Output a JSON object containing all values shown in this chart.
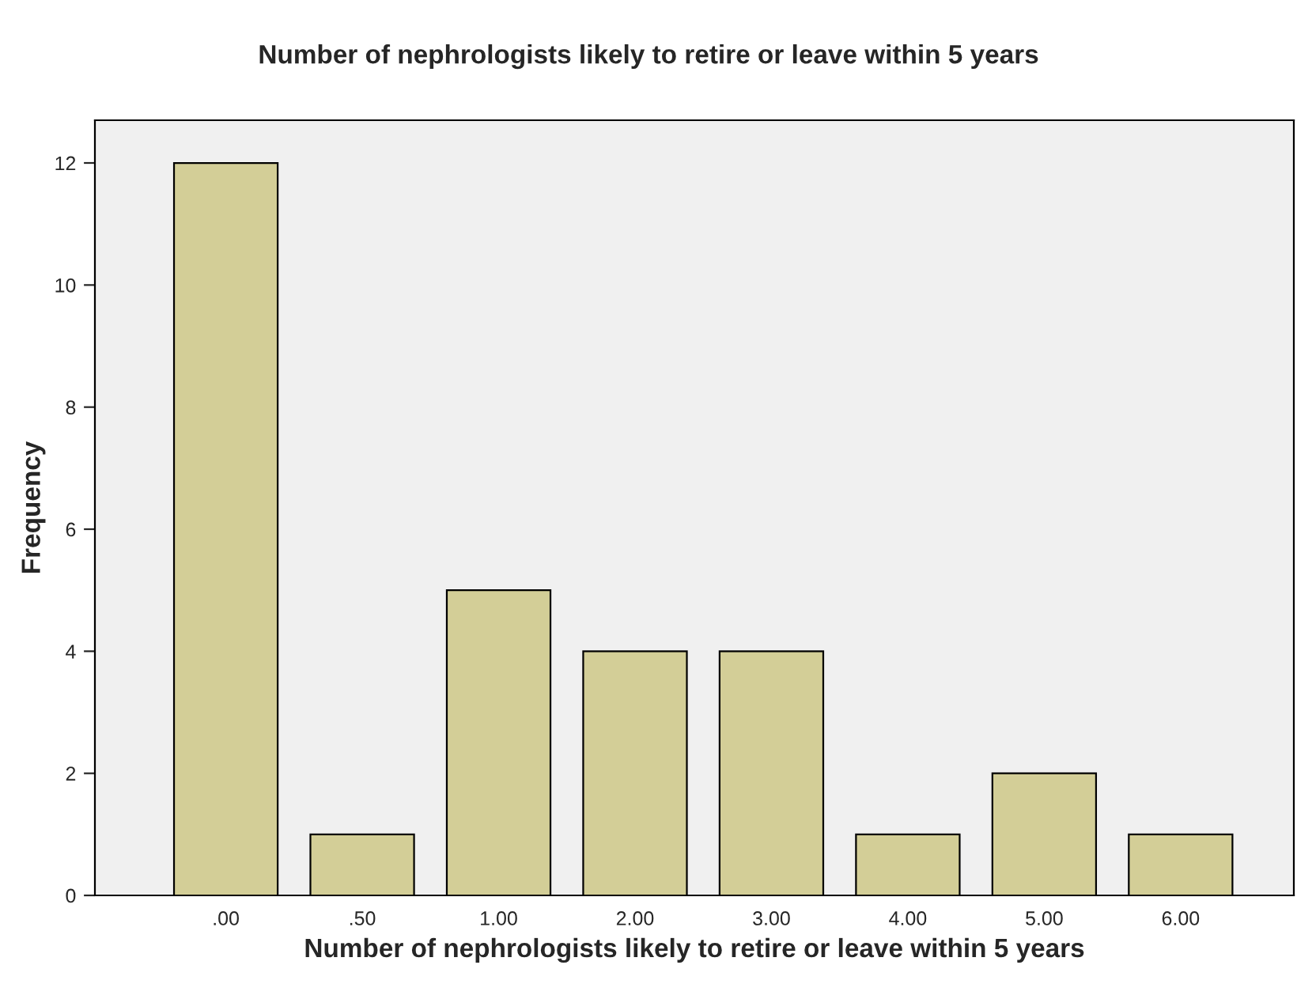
{
  "chart_data": {
    "type": "bar",
    "title": "Number of nephrologists likely to retire or leave within 5 years",
    "xlabel": "Number of nephrologists likely to retire or leave within 5 years",
    "ylabel": "Frequency",
    "categories": [
      ".00",
      ".50",
      "1.00",
      "2.00",
      "3.00",
      "4.00",
      "5.00",
      "6.00"
    ],
    "values": [
      12,
      1,
      5,
      4,
      4,
      1,
      2,
      1
    ],
    "color": "#d3ce97",
    "ylim": [
      0,
      12.7
    ],
    "yticks": [
      0,
      2,
      4,
      6,
      8,
      10,
      12
    ],
    "grid": false
  }
}
